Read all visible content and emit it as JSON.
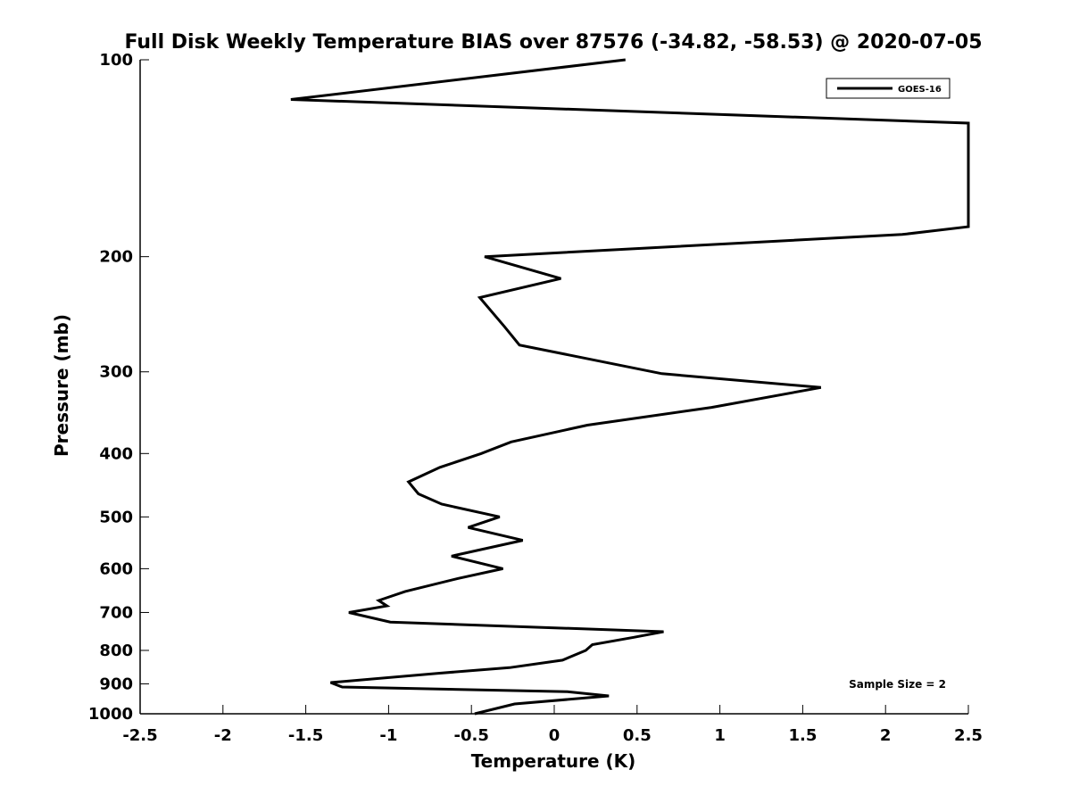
{
  "chart_data": {
    "type": "line",
    "title": "Full Disk Weekly Temperature BIAS over 87576 (-34.82, -58.53) @ 2020-07-05",
    "xlabel": "Temperature (K)",
    "ylabel": "Pressure (mb)",
    "xlim": [
      -2.5,
      2.5
    ],
    "ylim": [
      100,
      1000
    ],
    "y_scale": "log",
    "y_reversed": true,
    "grid": false,
    "legend_position": "top-right",
    "x_ticks": [
      -2.5,
      -2,
      -1.5,
      -1,
      -0.5,
      0,
      0.5,
      1,
      1.5,
      2,
      2.5
    ],
    "x_tick_labels": [
      "-2.5",
      "-2",
      "-1.5",
      "-1",
      "-0.5",
      "0",
      "0.5",
      "1",
      "1.5",
      "2",
      "2.5"
    ],
    "y_ticks": [
      100,
      200,
      300,
      400,
      500,
      600,
      700,
      800,
      900,
      1000
    ],
    "y_tick_labels": [
      "100",
      "200",
      "300",
      "400",
      "500",
      "600",
      "700",
      "800",
      "900",
      "1000"
    ],
    "annotation": "Sample Size = 2",
    "series": [
      {
        "name": "GOES-16",
        "color": "#000000",
        "points": [
          {
            "x": 0.43,
            "y": 100
          },
          {
            "x": -1.59,
            "y": 115
          },
          {
            "x": 2.5,
            "y": 125
          },
          {
            "x": 2.5,
            "y": 180
          },
          {
            "x": 2.1,
            "y": 185
          },
          {
            "x": -0.42,
            "y": 200
          },
          {
            "x": 0.04,
            "y": 216
          },
          {
            "x": -0.45,
            "y": 231
          },
          {
            "x": -0.3,
            "y": 256
          },
          {
            "x": -0.21,
            "y": 273
          },
          {
            "x": 0.65,
            "y": 302
          },
          {
            "x": 1.61,
            "y": 317
          },
          {
            "x": 0.95,
            "y": 340
          },
          {
            "x": 0.2,
            "y": 362
          },
          {
            "x": -0.26,
            "y": 384
          },
          {
            "x": -0.44,
            "y": 400
          },
          {
            "x": -0.69,
            "y": 420
          },
          {
            "x": -0.88,
            "y": 442
          },
          {
            "x": -0.82,
            "y": 461
          },
          {
            "x": -0.68,
            "y": 478
          },
          {
            "x": -0.33,
            "y": 500
          },
          {
            "x": -0.52,
            "y": 519
          },
          {
            "x": -0.19,
            "y": 543
          },
          {
            "x": -0.62,
            "y": 574
          },
          {
            "x": -0.31,
            "y": 600
          },
          {
            "x": -0.58,
            "y": 621
          },
          {
            "x": -0.9,
            "y": 650
          },
          {
            "x": -1.06,
            "y": 671
          },
          {
            "x": -1.01,
            "y": 684
          },
          {
            "x": -1.24,
            "y": 700
          },
          {
            "x": -0.99,
            "y": 724
          },
          {
            "x": 0.66,
            "y": 749
          },
          {
            "x": 0.48,
            "y": 764
          },
          {
            "x": 0.23,
            "y": 784
          },
          {
            "x": 0.19,
            "y": 800
          },
          {
            "x": 0.05,
            "y": 828
          },
          {
            "x": -0.27,
            "y": 850
          },
          {
            "x": -0.7,
            "y": 867
          },
          {
            "x": -1.35,
            "y": 896
          },
          {
            "x": -1.28,
            "y": 910
          },
          {
            "x": 0.08,
            "y": 925
          },
          {
            "x": 0.33,
            "y": 939
          },
          {
            "x": -0.24,
            "y": 966
          },
          {
            "x": -0.48,
            "y": 1000
          }
        ]
      }
    ]
  }
}
